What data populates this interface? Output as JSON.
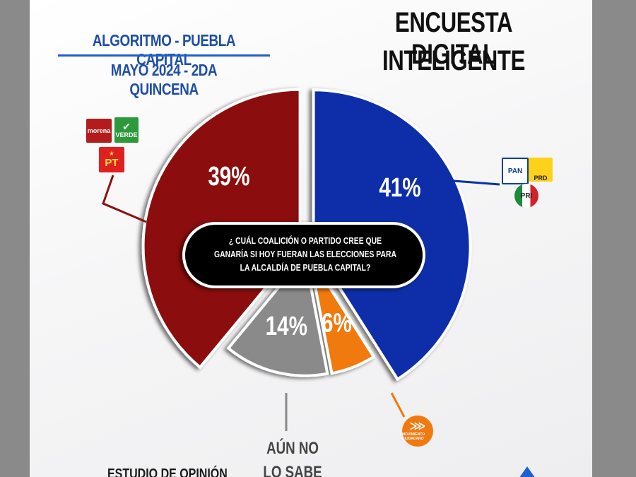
{
  "header": {
    "subtitle_line1": "ALGORITMO - PUEBLA CAPITAL",
    "subtitle_line2": "MAYO 2024  - 2DA QUINCENA",
    "title_line1": "ENCUESTA DIGITAL",
    "title_line2": "INTELIGENTE"
  },
  "question": {
    "line1": "¿ CUÁL COALICIÓN O PARTIDO CREE QUE",
    "line2": "GANARÍA SI HOY FUERAN  LAS ELECCIONES PARA",
    "line3": "LA ALCALDÍA DE PUEBLA CAPITAL?"
  },
  "logos": {
    "morena": "morena",
    "verde": "VERDE",
    "pt": "PT",
    "pan": "PAN",
    "prd": "PRD",
    "pri": "PRI",
    "movimiento_ciudadano": "MOVIMIENTO CIUDADANO"
  },
  "footer": {
    "left_text": "ESTUDIO DE OPINIÓN"
  },
  "chart_data": {
    "type": "pie",
    "title": "",
    "slices": [
      {
        "label": "41%",
        "value": 41,
        "color": "#0b2fa8",
        "group": "PAN-PRI-PRD"
      },
      {
        "label": "6%",
        "value": 6,
        "color": "#f07a10",
        "group": "Movimiento Ciudadano"
      },
      {
        "label": "14%",
        "value": 14,
        "color": "#8a8a8a",
        "group": "AÚN NO LO SABE",
        "caption": [
          "AÚN NO",
          "LO SABE"
        ]
      },
      {
        "label": "39%",
        "value": 39,
        "color": "#8b1010",
        "group": "Morena-PVEM-PT"
      }
    ]
  }
}
